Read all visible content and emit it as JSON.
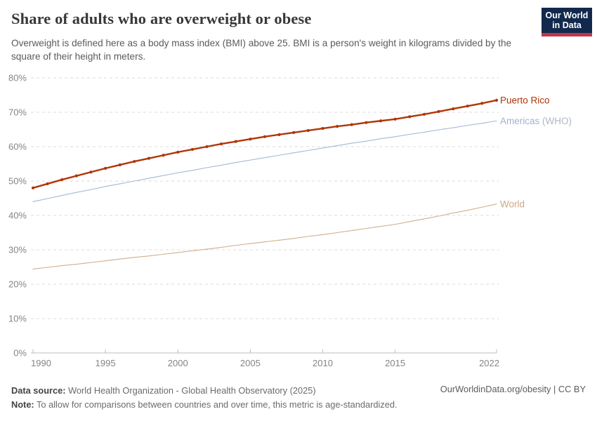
{
  "header": {
    "title": "Share of adults who are overweight or obese",
    "subtitle": "Overweight is defined here as a body mass index (BMI) above 25. BMI is a person's weight in kilograms divided by the square of their height in meters.",
    "logo": {
      "line1": "Our World",
      "line2": "in Data",
      "bg_color": "#12294E",
      "accent_color": "#C0354B"
    }
  },
  "footer": {
    "data_source_label": "Data source:",
    "data_source_text": " World Health Organization - Global Health Observatory (2025)",
    "note_label": "Note:",
    "note_text": " To allow for comparisons between countries and over time, this metric is age-standardized.",
    "attribution": "OurWorldinData.org/obesity | CC BY"
  },
  "chart_data": {
    "type": "line",
    "title": "Share of adults who are overweight or obese",
    "unit": "%",
    "grid": "horizontal-dashed",
    "xlim": [
      1990,
      2022
    ],
    "ylim": [
      0,
      80
    ],
    "x_ticks": [
      1990,
      1995,
      2000,
      2005,
      2010,
      2015,
      2022
    ],
    "y_ticks": [
      0,
      10,
      20,
      30,
      40,
      50,
      60,
      70,
      80
    ],
    "x": [
      1990,
      1991,
      1992,
      1993,
      1994,
      1995,
      1996,
      1997,
      1998,
      1999,
      2000,
      2001,
      2002,
      2003,
      2004,
      2005,
      2006,
      2007,
      2008,
      2009,
      2010,
      2011,
      2012,
      2013,
      2014,
      2015,
      2016,
      2017,
      2018,
      2019,
      2020,
      2021,
      2022
    ],
    "legend_position": "end-of-line labels, right side",
    "series": [
      {
        "name": "World",
        "label_main": "World",
        "label_suffix": "",
        "color": "#D2AE8C",
        "label_color": "#CBA987",
        "suffix_color": "#CBA987",
        "line_width": 1.1,
        "markers": false,
        "values": [
          24.4,
          24.9,
          25.4,
          25.8,
          26.3,
          26.8,
          27.3,
          27.8,
          28.2,
          28.7,
          29.2,
          29.7,
          30.2,
          30.7,
          31.3,
          31.8,
          32.3,
          32.8,
          33.3,
          33.9,
          34.4,
          35.0,
          35.6,
          36.2,
          36.8,
          37.4,
          38.2,
          39.0,
          39.8,
          40.7,
          41.5,
          42.4,
          43.3
        ]
      },
      {
        "name": "Americas (WHO)",
        "label_main": "Americas",
        "label_suffix": " (WHO)",
        "color": "#A4B8D4",
        "label_color": "#9FB4D1",
        "suffix_color": "#AFB6C1",
        "line_width": 1.1,
        "markers": false,
        "values": [
          44.0,
          44.9,
          45.8,
          46.7,
          47.5,
          48.4,
          49.2,
          50.0,
          50.8,
          51.6,
          52.4,
          53.1,
          53.9,
          54.6,
          55.4,
          56.1,
          56.8,
          57.5,
          58.2,
          58.9,
          59.6,
          60.3,
          61.0,
          61.6,
          62.3,
          62.9,
          63.6,
          64.2,
          64.9,
          65.5,
          66.2,
          66.8,
          67.5
        ]
      },
      {
        "name": "Puerto Rico",
        "label_main": "Puerto Rico",
        "label_suffix": "",
        "color": "#B13507",
        "label_color": "#B13507",
        "suffix_color": "#B13507",
        "line_width": 2.4,
        "markers": true,
        "values": [
          48.0,
          49.2,
          50.4,
          51.5,
          52.6,
          53.7,
          54.7,
          55.7,
          56.6,
          57.5,
          58.4,
          59.2,
          60.0,
          60.8,
          61.5,
          62.2,
          62.9,
          63.5,
          64.1,
          64.7,
          65.3,
          65.9,
          66.4,
          67.0,
          67.5,
          68.0,
          68.7,
          69.4,
          70.2,
          71.0,
          71.8,
          72.6,
          73.5
        ]
      }
    ],
    "style": {
      "grid_color": "#DBDBDB",
      "axis_color": "#BDBDBD",
      "tick_label_color": "#858585"
    }
  }
}
